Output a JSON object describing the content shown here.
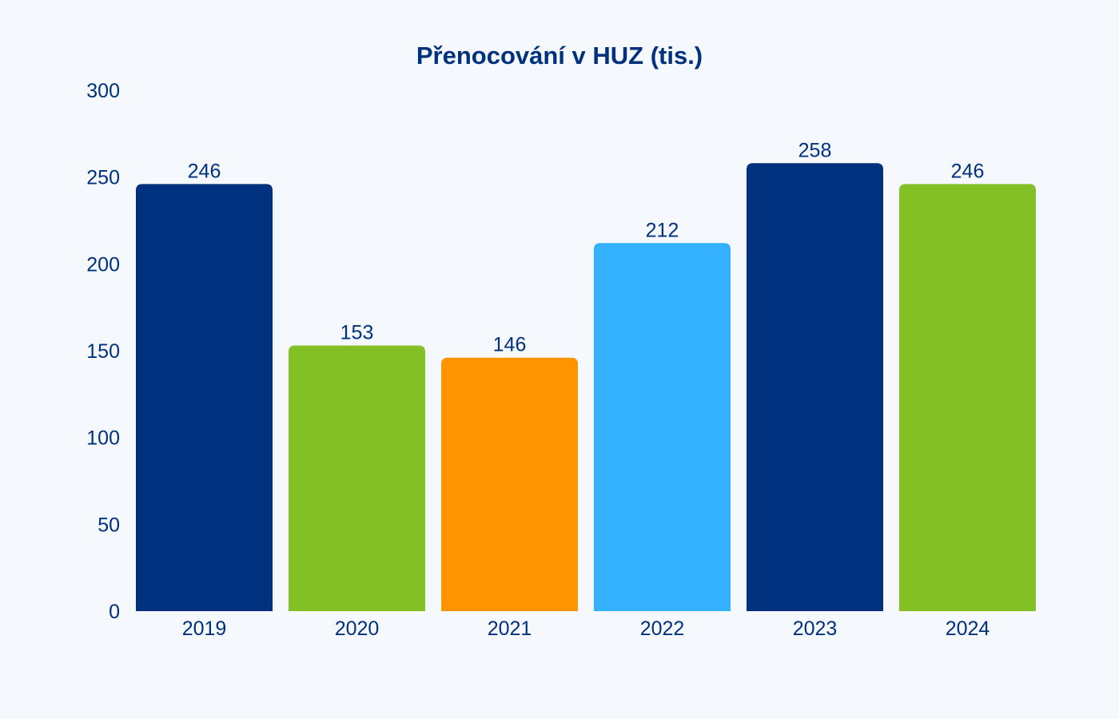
{
  "chart_data": {
    "type": "bar",
    "title": "Přenocování v HUZ (tis.)",
    "xlabel": "",
    "ylabel": "",
    "categories": [
      "2019",
      "2020",
      "2021",
      "2022",
      "2023",
      "2024"
    ],
    "values": [
      246,
      153,
      146,
      212,
      258,
      246
    ],
    "data_labels": [
      "246",
      "153",
      "146",
      "212",
      "258",
      "246"
    ],
    "bar_colors": [
      "#00317f",
      "#82c026",
      "#ff9300",
      "#33b1ff",
      "#00317f",
      "#82c026"
    ],
    "ylim": [
      0,
      300
    ],
    "yticks": [
      0,
      50,
      100,
      150,
      200,
      250,
      300
    ],
    "ytick_labels": [
      "0",
      "50",
      "100",
      "150",
      "200",
      "250",
      "300"
    ],
    "grid": false,
    "legend": "none",
    "text_color": "#00317f",
    "background": "#f5f8fc"
  }
}
